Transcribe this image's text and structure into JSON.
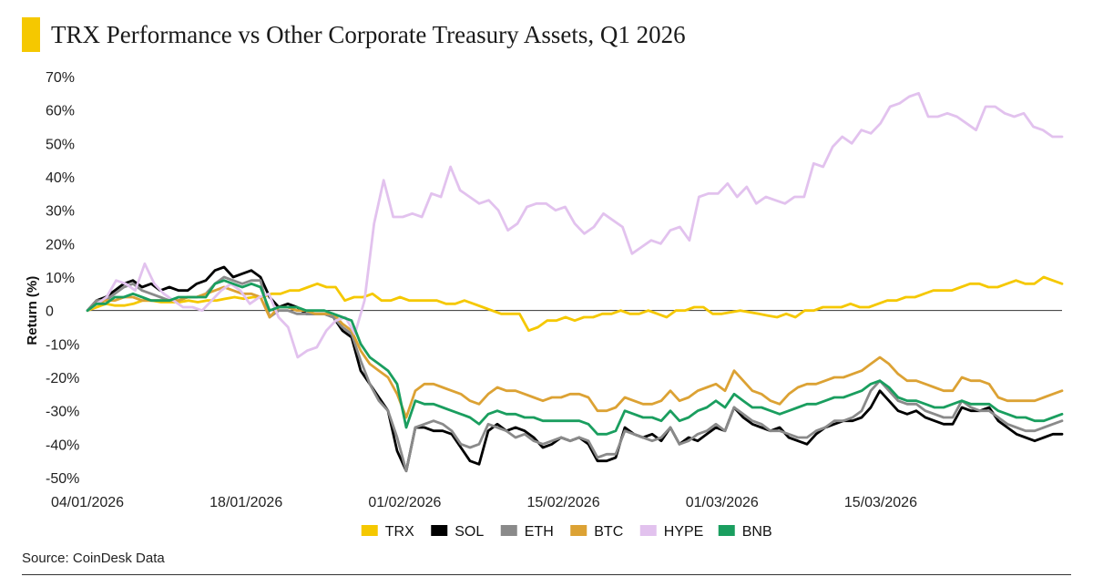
{
  "title": "TRX Performance vs Other Corporate Treasury Assets, Q1 2026",
  "source": "Source:  CoinDesk Data",
  "colors": {
    "accent": "#f5c800",
    "TRX": "#f5c800",
    "SOL": "#000000",
    "ETH": "#8a8a8a",
    "BTC": "#dca234",
    "HYPE": "#e2c2ee",
    "BNB": "#1a9e5f"
  },
  "chart_data": {
    "type": "line",
    "title": "TRX Performance vs Other Corporate Treasury Assets, Q1 2026",
    "xlabel": "",
    "ylabel": "Return (%)",
    "ylim": [
      -50,
      70
    ],
    "y_ticks": [
      -50,
      -40,
      -30,
      -20,
      -10,
      0,
      10,
      20,
      30,
      40,
      50,
      60,
      70
    ],
    "y_tick_labels": [
      "-50%",
      "-40%",
      "-30%",
      "-20%",
      "-10%",
      "0",
      "10%",
      "20%",
      "30%",
      "40%",
      "50%",
      "60%",
      "70%"
    ],
    "x_start": "2026-01-04",
    "x_end": "2026-03-31",
    "x_ticks": [
      "04/01/2026",
      "18/01/2026",
      "01/02/2026",
      "15/02/2026",
      "01/03/2026",
      "15/03/2026"
    ],
    "legend_position": "bottom",
    "grid": false,
    "series": [
      {
        "name": "TRX",
        "values": [
          0,
          1,
          2,
          1.5,
          1.5,
          2,
          3,
          3,
          2.5,
          2.5,
          2.5,
          3,
          2.5,
          3,
          3,
          3.5,
          4,
          3.5,
          4,
          4,
          5,
          5,
          6,
          6,
          7,
          8,
          7,
          7,
          3,
          4,
          4,
          5,
          3,
          3,
          4,
          3,
          3,
          3,
          3,
          2,
          2,
          3,
          2,
          1,
          0,
          -1,
          -1,
          -1,
          -6,
          -5,
          -3,
          -3,
          -2,
          -3,
          -2,
          -2,
          -1,
          -1,
          0,
          -1,
          -1,
          0,
          -1,
          -2,
          0,
          0,
          1,
          1,
          -1,
          -1,
          -0.5,
          0,
          -0.5,
          -1,
          -1.5,
          -2,
          -1,
          -2,
          0,
          0,
          1,
          1,
          1,
          2,
          1,
          1,
          2,
          3,
          3,
          4,
          4,
          5,
          6,
          6,
          6,
          7,
          8,
          8,
          7,
          7,
          8,
          9,
          8,
          8,
          10,
          9,
          8
        ]
      },
      {
        "name": "SOL",
        "values": [
          0,
          3,
          4,
          6,
          8,
          9,
          7,
          8,
          6,
          7,
          6,
          6,
          8,
          9,
          12,
          13,
          10,
          11,
          12,
          10,
          4,
          1,
          2,
          1,
          -1,
          -1,
          -1,
          -2,
          -6,
          -8,
          -18,
          -22,
          -26,
          -30,
          -42,
          -48,
          -35,
          -35,
          -36,
          -36,
          -37,
          -41,
          -45,
          -46,
          -36,
          -34,
          -36,
          -35,
          -36,
          -38,
          -41,
          -40,
          -38,
          -39,
          -38,
          -40,
          -45,
          -45,
          -44,
          -35,
          -37,
          -38,
          -37,
          -39,
          -35,
          -40,
          -38,
          -39,
          -37,
          -35,
          -36,
          -29,
          -32,
          -34,
          -35,
          -36,
          -35,
          -38,
          -39,
          -40,
          -37,
          -35,
          -34,
          -33,
          -33,
          -32,
          -29,
          -24,
          -27,
          -30,
          -31,
          -30,
          -32,
          -33,
          -34,
          -34,
          -29,
          -30,
          -30,
          -29,
          -33,
          -35,
          -37,
          -38,
          -39,
          -38,
          -37,
          -37
        ]
      },
      {
        "name": "ETH",
        "values": [
          0,
          3,
          3,
          5,
          7,
          8,
          6,
          5,
          4,
          3,
          3,
          4,
          4,
          5,
          8,
          10,
          9,
          8,
          9,
          9,
          -2,
          0,
          0,
          -1,
          -1,
          -1,
          -1,
          -2,
          -5,
          -7,
          -15,
          -22,
          -27,
          -30,
          -38,
          -48,
          -35,
          -34,
          -33,
          -34,
          -36,
          -40,
          -41,
          -40,
          -34,
          -35,
          -36,
          -38,
          -37,
          -39,
          -40,
          -39,
          -38,
          -39,
          -38,
          -39,
          -44,
          -43,
          -43,
          -36,
          -37,
          -38,
          -39,
          -38,
          -35,
          -40,
          -39,
          -37,
          -36,
          -34,
          -36,
          -29,
          -31,
          -33,
          -34,
          -36,
          -36,
          -37,
          -38,
          -38,
          -36,
          -35,
          -33,
          -33,
          -32,
          -30,
          -24,
          -21,
          -24,
          -27,
          -28,
          -28,
          -30,
          -31,
          -32,
          -32,
          -27,
          -29,
          -30,
          -30,
          -32,
          -34,
          -35,
          -36,
          -36,
          -35,
          -34,
          -33
        ]
      },
      {
        "name": "BTC",
        "values": [
          0,
          2,
          3,
          3,
          4,
          4,
          3,
          3,
          3,
          3,
          3,
          4,
          4,
          5,
          6,
          7,
          6,
          5,
          5,
          4,
          -2,
          1,
          1,
          0,
          0,
          -1,
          -1,
          -1,
          -4,
          -6,
          -12,
          -16,
          -18,
          -20,
          -25,
          -32,
          -24,
          -22,
          -22,
          -23,
          -24,
          -25,
          -27,
          -28,
          -25,
          -23,
          -24,
          -24,
          -25,
          -26,
          -27,
          -26,
          -26,
          -25,
          -25,
          -26,
          -30,
          -30,
          -29,
          -26,
          -27,
          -28,
          -28,
          -27,
          -24,
          -27,
          -26,
          -24,
          -23,
          -22,
          -24,
          -18,
          -21,
          -24,
          -25,
          -27,
          -28,
          -25,
          -23,
          -22,
          -22,
          -21,
          -20,
          -20,
          -19,
          -18,
          -16,
          -14,
          -16,
          -19,
          -21,
          -21,
          -22,
          -23,
          -24,
          -24,
          -20,
          -21,
          -21,
          -22,
          -26,
          -27,
          -27,
          -27,
          -27,
          -26,
          -25,
          -24
        ]
      },
      {
        "name": "HYPE",
        "values": [
          0,
          2,
          4,
          9,
          8,
          6,
          14,
          8,
          5,
          3,
          1,
          1,
          0,
          3,
          6,
          8,
          6,
          2,
          4,
          5,
          -2,
          -5,
          -14,
          -12,
          -11,
          -6,
          -3,
          -2,
          -7,
          3,
          26,
          39,
          28,
          28,
          29,
          28,
          35,
          34,
          43,
          36,
          34,
          32,
          33,
          30,
          24,
          26,
          31,
          32,
          32,
          30,
          31,
          26,
          23,
          25,
          29,
          27,
          25,
          17,
          19,
          21,
          20,
          24,
          25,
          21,
          34,
          35,
          35,
          38,
          34,
          37,
          32,
          34,
          33,
          32,
          34,
          34,
          44,
          43,
          49,
          52,
          50,
          54,
          53,
          56,
          61,
          62,
          64,
          65,
          58,
          58,
          59,
          58,
          56,
          54,
          61,
          61,
          59,
          58,
          59,
          55,
          54,
          52,
          52
        ]
      },
      {
        "name": "BNB",
        "values": [
          0,
          2,
          2,
          4,
          4,
          5,
          4,
          3,
          3,
          3,
          4,
          4,
          4,
          4,
          8,
          9,
          8,
          7,
          8,
          7,
          0,
          1,
          1,
          1,
          0,
          0,
          0,
          -1,
          -2,
          -3,
          -10,
          -14,
          -16,
          -18,
          -22,
          -35,
          -27,
          -28,
          -28,
          -29,
          -30,
          -31,
          -32,
          -34,
          -31,
          -30,
          -31,
          -31,
          -32,
          -32,
          -33,
          -33,
          -33,
          -33,
          -33,
          -34,
          -37,
          -37,
          -36,
          -30,
          -31,
          -32,
          -32,
          -33,
          -30,
          -33,
          -32,
          -30,
          -29,
          -27,
          -29,
          -25,
          -27,
          -29,
          -29,
          -30,
          -31,
          -30,
          -29,
          -28,
          -28,
          -27,
          -26,
          -26,
          -25,
          -24,
          -22,
          -21,
          -23,
          -26,
          -27,
          -27,
          -28,
          -29,
          -29,
          -28,
          -27,
          -28,
          -28,
          -28,
          -30,
          -31,
          -32,
          -32,
          -33,
          -33,
          -32,
          -31
        ]
      }
    ]
  }
}
